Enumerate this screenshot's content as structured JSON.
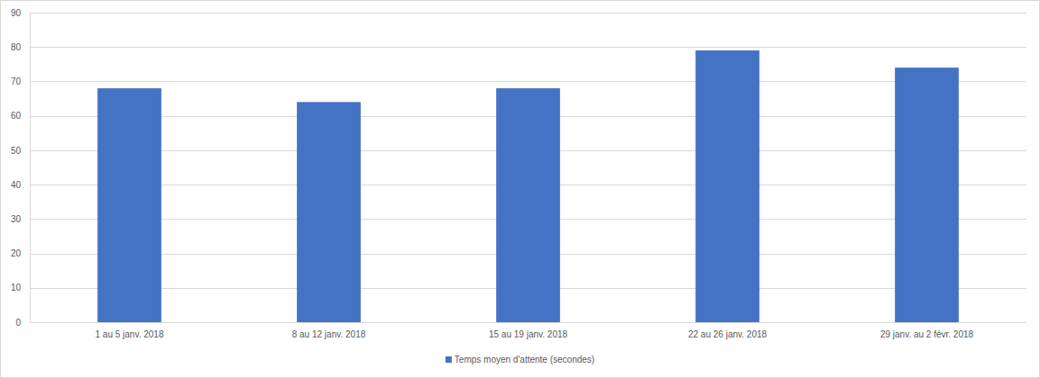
{
  "chart_data": {
    "type": "bar",
    "categories": [
      "1 au 5 janv. 2018",
      "8 au 12 janv. 2018",
      "15 au 19 janv. 2018",
      "22 au 26 janv. 2018",
      "29 janv. au 2 févr. 2018"
    ],
    "series": [
      {
        "name": "Temps moyen d'attente (secondes)",
        "color": "#4472c4",
        "values": [
          68,
          64,
          68,
          79,
          74
        ]
      }
    ],
    "ylim": [
      0,
      90
    ],
    "yticks": [
      0,
      10,
      20,
      30,
      40,
      50,
      60,
      70,
      80,
      90
    ],
    "grid": true,
    "legend": "bottom"
  }
}
